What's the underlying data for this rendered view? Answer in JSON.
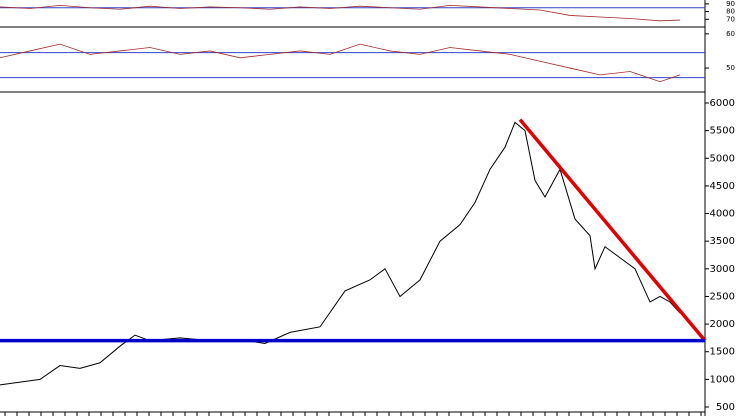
{
  "chart_data": [
    {
      "type": "line",
      "x": [
        0,
        30,
        60,
        90,
        120,
        150,
        180,
        210,
        240,
        270,
        300,
        330,
        360,
        390,
        420,
        450,
        480,
        510,
        540,
        570,
        600,
        630,
        660,
        680
      ],
      "series": [
        {
          "color": "#a52a2a",
          "values": [
            86,
            84,
            88,
            85,
            83,
            87,
            84,
            86,
            85,
            83,
            86,
            84,
            87,
            85,
            83,
            88,
            86,
            84,
            82,
            75,
            73,
            71,
            68,
            69
          ]
        }
      ],
      "ylim": [
        60,
        95
      ],
      "yticks": [
        90,
        80,
        70
      ],
      "hlines": [
        85
      ]
    },
    {
      "type": "line",
      "x": [
        0,
        30,
        60,
        90,
        120,
        150,
        180,
        210,
        240,
        270,
        300,
        330,
        360,
        390,
        420,
        450,
        480,
        510,
        540,
        570,
        600,
        630,
        660,
        680
      ],
      "series": [
        {
          "color": "#a52a2a",
          "values": [
            53,
            55,
            57,
            54,
            55,
            56,
            54,
            55,
            53,
            54,
            55,
            54,
            57,
            55,
            54,
            56,
            55,
            54,
            52,
            50,
            48,
            49,
            46,
            48
          ]
        }
      ],
      "ylim": [
        43,
        62
      ],
      "yticks": [
        60,
        50
      ],
      "hlines": [
        54.5,
        47.2
      ]
    },
    {
      "type": "line",
      "x": [
        0,
        40,
        60,
        80,
        100,
        120,
        135,
        150,
        180,
        210,
        240,
        265,
        290,
        320,
        345,
        370,
        385,
        400,
        420,
        440,
        460,
        475,
        490,
        505,
        515,
        525,
        535,
        545,
        560,
        575,
        590,
        595,
        605,
        620,
        635,
        650,
        660,
        670,
        680
      ],
      "series": [
        {
          "color": "#000000",
          "values": [
            900,
            1000,
            1250,
            1200,
            1300,
            1600,
            1800,
            1700,
            1750,
            1700,
            1720,
            1650,
            1850,
            1950,
            2600,
            2800,
            3000,
            2500,
            2800,
            3500,
            3800,
            4200,
            4800,
            5200,
            5650,
            5500,
            4600,
            4300,
            4800,
            3900,
            3600,
            3000,
            3400,
            3200,
            3000,
            2400,
            2500,
            2400,
            2200
          ]
        },
        {
          "color": "#e00000",
          "x": [
            520,
            705
          ],
          "values": [
            5700,
            1700
          ]
        },
        {
          "color": "#0000cc",
          "x": [
            0,
            705
          ],
          "values": [
            1700,
            1700
          ]
        }
      ],
      "xlim": [
        0,
        705
      ],
      "ylim": [
        500,
        6000
      ],
      "yticks": [
        6000,
        5500,
        5000,
        4500,
        4000,
        3500,
        3000,
        2500,
        2000,
        1500,
        1000,
        500
      ]
    }
  ]
}
